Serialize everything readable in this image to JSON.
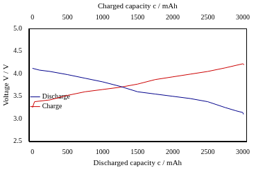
{
  "chart_data": {
    "type": "line",
    "xlabel": "Discharged capacity c / mAh",
    "x2label": "Charged capacity c / mAh",
    "ylabel": "Voltage V / V",
    "xlim": [
      -50,
      3050
    ],
    "xticks": [
      0,
      500,
      1000,
      1500,
      2000,
      2500,
      3000
    ],
    "x2lim": [
      -50,
      3050
    ],
    "x2ticks": [
      0,
      500,
      1000,
      1500,
      2000,
      2500,
      3000
    ],
    "ylim": [
      2.5,
      5.0
    ],
    "yticks": [
      2.5,
      {
        "value": 3,
        "label": "3.0"
      },
      3.5,
      {
        "value": 4,
        "label": "4.0"
      },
      4.5,
      {
        "value": 5,
        "label": "5.0"
      }
    ],
    "grid": false,
    "legend": "upper right",
    "series": [
      {
        "name": "Discharge",
        "color": "#00008b",
        "axis": "x",
        "x": [
          0,
          100,
          250,
          500,
          750,
          1000,
          1250,
          1500,
          1750,
          2000,
          2250,
          2500,
          2750,
          2900,
          3000,
          3010
        ],
        "values": [
          4.12,
          4.08,
          4.05,
          3.98,
          3.9,
          3.82,
          3.72,
          3.6,
          3.55,
          3.5,
          3.45,
          3.38,
          3.25,
          3.18,
          3.14,
          3.1
        ]
      },
      {
        "name": "Charge",
        "color": "#cc0000",
        "axis": "x2",
        "x": [
          0,
          30,
          250,
          500,
          750,
          1000,
          1250,
          1500,
          1750,
          2000,
          2250,
          2500,
          2750,
          3000,
          3020
        ],
        "values": [
          3.25,
          3.38,
          3.42,
          3.52,
          3.6,
          3.65,
          3.7,
          3.77,
          3.87,
          3.93,
          3.99,
          4.05,
          4.13,
          4.22,
          4.2
        ]
      }
    ]
  }
}
